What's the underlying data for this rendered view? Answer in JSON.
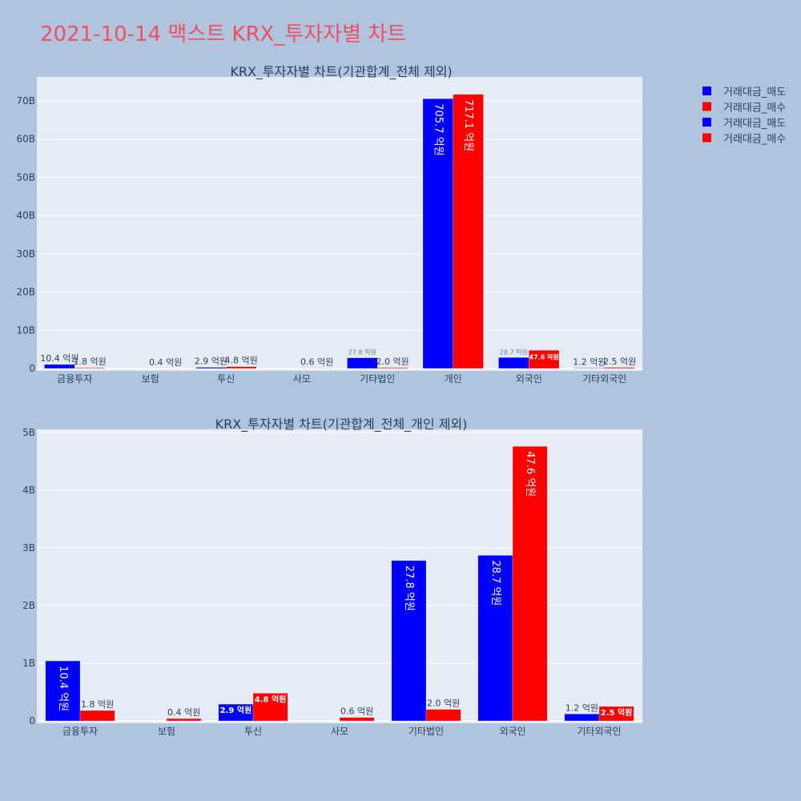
{
  "title": "2021-10-14 맥스트 KRX_투자자별 차트",
  "colors": {
    "sell": "#0000ff",
    "buy": "#ff0000",
    "plot_bg": "#e5ecf6",
    "title": "#ef4f65"
  },
  "legend": [
    "거래대금_매도",
    "거래대금_매수",
    "거래대금_매도",
    "거래대금_매수"
  ],
  "chart_data": [
    {
      "type": "bar",
      "title": "KRX_투자자별 차트(기관합계_전체 제외)",
      "categories": [
        "금융투자",
        "보험",
        "투신",
        "사모",
        "기타법인",
        "개인",
        "외국인",
        "기타외국인"
      ],
      "unit": "억원",
      "ylim": [
        0,
        7200000000
      ],
      "yticks": [
        0,
        10000000000,
        20000000000,
        30000000000,
        40000000000,
        50000000000,
        60000000000,
        70000000000
      ],
      "ytick_labels": [
        "0",
        "10B",
        "20B",
        "30B",
        "40B",
        "50B",
        "60B",
        "70B"
      ],
      "series": [
        {
          "name": "거래대금_매도",
          "values": [
            10.4,
            0,
            2.9,
            0,
            27.8,
            705.7,
            28.7,
            1.2
          ],
          "labels": [
            "10.4 억원",
            "",
            "2.9 억원",
            "",
            "27.8 억원",
            "705.7 억원",
            "28.7 억원",
            "1.2 억원"
          ]
        },
        {
          "name": "거래대금_매수",
          "values": [
            1.8,
            0.4,
            4.8,
            0.6,
            2.0,
            717.1,
            47.6,
            2.5
          ],
          "labels": [
            "1.8 억원",
            "0.4 억원",
            "4.8 억원",
            "0.6 억원",
            "2.0 억원",
            "717.1 억원",
            "47.6 억원",
            "2.5 억원"
          ]
        }
      ]
    },
    {
      "type": "bar",
      "title": "KRX_투자자별 차트(기관합계_전체_개인 제외)",
      "categories": [
        "금융투자",
        "보험",
        "투신",
        "사모",
        "기타법인",
        "외국인",
        "기타외국인"
      ],
      "unit": "억원",
      "yticks": [
        0,
        1000000000,
        2000000000,
        3000000000,
        4000000000,
        5000000000
      ],
      "ytick_labels": [
        "0",
        "1B",
        "2B",
        "3B",
        "4B",
        "5B"
      ],
      "series": [
        {
          "name": "거래대금_매도",
          "values": [
            10.4,
            0,
            2.9,
            0,
            27.8,
            28.7,
            1.2
          ],
          "labels": [
            "10.4 억원",
            "",
            "2.9 억원",
            "",
            "27.8 억원",
            "28.7 억원",
            "1.2 억원"
          ]
        },
        {
          "name": "거래대금_매수",
          "values": [
            1.8,
            0.4,
            4.8,
            0.6,
            2.0,
            47.6,
            2.5
          ],
          "labels": [
            "1.8 억원",
            "0.4 억원",
            "4.8 억원",
            "0.6 억원",
            "2.0 억원",
            "47.6 억원",
            "2.5 억원"
          ]
        }
      ]
    }
  ]
}
